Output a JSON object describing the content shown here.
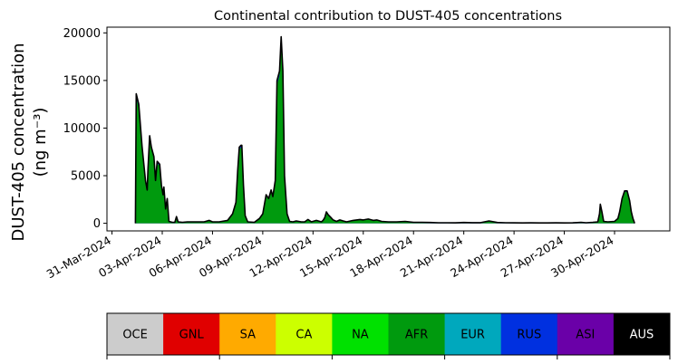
{
  "chart_data": {
    "type": "area",
    "title": "Continental contribution to DUST-405 concentrations",
    "ylabel_line1": "DUST-405 concentration",
    "ylabel_line2": "(ng m⁻³)",
    "xlabel": "",
    "x_start": "2024-03-31",
    "ylim": [
      -800,
      20600
    ],
    "xlim_days": [
      -0.3,
      33.3
    ],
    "y_ticks": [
      0,
      5000,
      10000,
      15000,
      20000
    ],
    "x_ticks": [
      "31-Mar-2024",
      "03-Apr-2024",
      "06-Apr-2024",
      "09-Apr-2024",
      "12-Apr-2024",
      "15-Apr-2024",
      "18-Apr-2024",
      "21-Apr-2024",
      "24-Apr-2024",
      "27-Apr-2024",
      "30-Apr-2024"
    ],
    "x_tick_days": [
      0,
      3,
      6,
      9,
      12,
      15,
      18,
      21,
      24,
      27,
      30
    ],
    "total": [
      [
        1.4,
        0
      ],
      [
        1.45,
        13600
      ],
      [
        1.6,
        12500
      ],
      [
        1.8,
        8000
      ],
      [
        2.0,
        4500
      ],
      [
        2.1,
        3500
      ],
      [
        2.15,
        5800
      ],
      [
        2.25,
        9200
      ],
      [
        2.35,
        8000
      ],
      [
        2.5,
        7000
      ],
      [
        2.6,
        4500
      ],
      [
        2.7,
        6500
      ],
      [
        2.85,
        6200
      ],
      [
        2.95,
        4000
      ],
      [
        3.05,
        3000
      ],
      [
        3.1,
        3800
      ],
      [
        3.2,
        1500
      ],
      [
        3.3,
        2600
      ],
      [
        3.4,
        200
      ],
      [
        3.6,
        100
      ],
      [
        3.75,
        100
      ],
      [
        3.85,
        700
      ],
      [
        3.95,
        150
      ],
      [
        4.2,
        100
      ],
      [
        4.5,
        150
      ],
      [
        5.0,
        150
      ],
      [
        5.5,
        150
      ],
      [
        5.8,
        300
      ],
      [
        6.0,
        150
      ],
      [
        6.4,
        150
      ],
      [
        6.9,
        300
      ],
      [
        7.2,
        1000
      ],
      [
        7.4,
        2200
      ],
      [
        7.5,
        5500
      ],
      [
        7.6,
        8000
      ],
      [
        7.7,
        8200
      ],
      [
        7.75,
        8200
      ],
      [
        7.85,
        4000
      ],
      [
        7.95,
        800
      ],
      [
        8.1,
        150
      ],
      [
        8.5,
        100
      ],
      [
        8.8,
        500
      ],
      [
        9.0,
        1000
      ],
      [
        9.2,
        3000
      ],
      [
        9.35,
        2600
      ],
      [
        9.5,
        3500
      ],
      [
        9.6,
        2800
      ],
      [
        9.75,
        4500
      ],
      [
        9.85,
        15000
      ],
      [
        10.0,
        16000
      ],
      [
        10.1,
        19600
      ],
      [
        10.2,
        16000
      ],
      [
        10.3,
        5000
      ],
      [
        10.45,
        1000
      ],
      [
        10.6,
        200
      ],
      [
        10.8,
        150
      ],
      [
        11.0,
        250
      ],
      [
        11.3,
        150
      ],
      [
        11.5,
        150
      ],
      [
        11.7,
        400
      ],
      [
        11.9,
        150
      ],
      [
        12.2,
        300
      ],
      [
        12.5,
        150
      ],
      [
        12.6,
        300
      ],
      [
        12.7,
        600
      ],
      [
        12.8,
        1200
      ],
      [
        12.9,
        900
      ],
      [
        13.05,
        650
      ],
      [
        13.2,
        350
      ],
      [
        13.4,
        200
      ],
      [
        13.6,
        350
      ],
      [
        13.8,
        250
      ],
      [
        14.0,
        150
      ],
      [
        14.4,
        300
      ],
      [
        14.8,
        400
      ],
      [
        15.0,
        350
      ],
      [
        15.3,
        450
      ],
      [
        15.6,
        300
      ],
      [
        15.8,
        350
      ],
      [
        16.1,
        200
      ],
      [
        16.5,
        150
      ],
      [
        17.0,
        150
      ],
      [
        17.5,
        200
      ],
      [
        18.0,
        100
      ],
      [
        18.5,
        100
      ],
      [
        19.0,
        80
      ],
      [
        19.5,
        60
      ],
      [
        20.0,
        60
      ],
      [
        20.5,
        50
      ],
      [
        21.0,
        80
      ],
      [
        21.5,
        70
      ],
      [
        22.0,
        70
      ],
      [
        22.5,
        250
      ],
      [
        23.0,
        80
      ],
      [
        23.5,
        60
      ],
      [
        24.0,
        50
      ],
      [
        24.5,
        40
      ],
      [
        25.0,
        50
      ],
      [
        25.5,
        40
      ],
      [
        26.0,
        40
      ],
      [
        26.5,
        50
      ],
      [
        27.0,
        40
      ],
      [
        27.5,
        50
      ],
      [
        28.0,
        100
      ],
      [
        28.3,
        60
      ],
      [
        28.7,
        100
      ],
      [
        29.0,
        150
      ],
      [
        29.1,
        1000
      ],
      [
        29.15,
        2000
      ],
      [
        29.25,
        1200
      ],
      [
        29.35,
        200
      ],
      [
        29.6,
        150
      ],
      [
        30.0,
        200
      ],
      [
        30.2,
        500
      ],
      [
        30.3,
        1200
      ],
      [
        30.45,
        2600
      ],
      [
        30.6,
        3400
      ],
      [
        30.75,
        3400
      ],
      [
        30.9,
        2400
      ],
      [
        31.0,
        1200
      ],
      [
        31.1,
        500
      ],
      [
        31.2,
        0
      ]
    ],
    "series_fill": {
      "name": "AFR",
      "color": "#009a0e"
    },
    "minor_series_colors": [
      "#6a00a8",
      "#0030e0"
    ],
    "legend": {
      "placement": "bottom colorbar",
      "items": [
        {
          "label": "OCE",
          "color": "#cccccc",
          "text_color": "#000000"
        },
        {
          "label": "GNL",
          "color": "#e00000",
          "text_color": "#000000"
        },
        {
          "label": "SA",
          "color": "#ffaa00",
          "text_color": "#000000"
        },
        {
          "label": "CA",
          "color": "#ccff00",
          "text_color": "#000000"
        },
        {
          "label": "NA",
          "color": "#00e100",
          "text_color": "#000000"
        },
        {
          "label": "AFR",
          "color": "#009a0e",
          "text_color": "#000000"
        },
        {
          "label": "EUR",
          "color": "#00a8bd",
          "text_color": "#000000"
        },
        {
          "label": "RUS",
          "color": "#0030e0",
          "text_color": "#000000"
        },
        {
          "label": "ASI",
          "color": "#6a00a8",
          "text_color": "#000000"
        },
        {
          "label": "AUS",
          "color": "#000000",
          "text_color": "#ffffff"
        }
      ]
    },
    "grid": false
  }
}
